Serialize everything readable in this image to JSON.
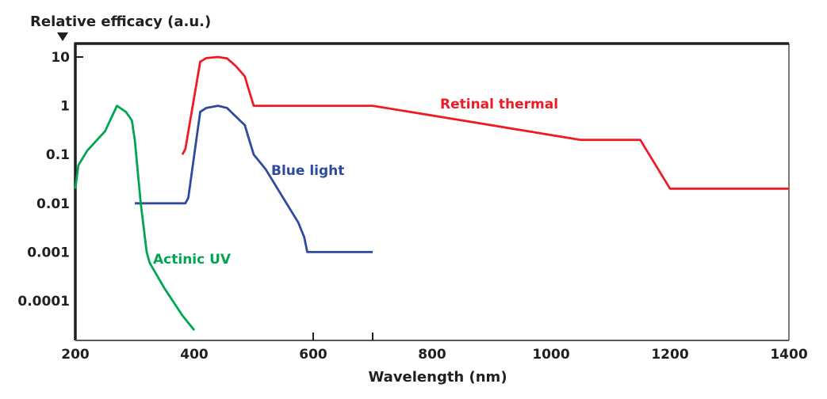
{
  "chart_data": {
    "type": "line",
    "title": "",
    "ylabel": "Relative efficacy (a.u.)",
    "xlabel": "Wavelength (nm)",
    "xlim": [
      200,
      1400
    ],
    "ylim": [
      2e-05,
      20
    ],
    "yscale": "log",
    "grid": false,
    "x_ticks": [
      200,
      400,
      600,
      800,
      1000,
      1200,
      1400
    ],
    "x_tick_labels": [
      "200",
      "400",
      "600",
      "800",
      "1000",
      "1200",
      "1400"
    ],
    "x_tick_marks": [
      600,
      700
    ],
    "y_ticks": [
      10,
      1,
      0.1,
      0.01,
      0.001,
      0.0001
    ],
    "y_tick_labels": [
      "10",
      "1",
      "0.1",
      "0.01",
      "0.001",
      "0.0001"
    ],
    "series": [
      {
        "name": "Retinal thermal",
        "color": "#ed1c24",
        "x": [
          380,
          385,
          410,
          420,
          440,
          455,
          470,
          485,
          490,
          500,
          700,
          1050,
          1150,
          1200,
          1400
        ],
        "y": [
          0.1,
          0.13,
          8,
          9.5,
          10,
          9.4,
          6.5,
          4,
          2.5,
          1,
          1,
          0.2,
          0.2,
          0.02,
          0.02
        ]
      },
      {
        "name": "Blue light",
        "color": "#2e4a9e",
        "x": [
          300,
          385,
          390,
          410,
          420,
          440,
          455,
          470,
          485,
          490,
          500,
          520,
          540,
          560,
          575,
          585,
          590,
          700
        ],
        "y": [
          0.01,
          0.01,
          0.013,
          0.75,
          0.9,
          1,
          0.9,
          0.6,
          0.4,
          0.25,
          0.1,
          0.05,
          0.02,
          0.008,
          0.004,
          0.002,
          0.001,
          0.001
        ]
      },
      {
        "name": "Actinic UV",
        "color": "#00a651",
        "x": [
          200,
          205,
          220,
          250,
          270,
          285,
          295,
          300,
          310,
          320,
          325,
          350,
          380,
          400
        ],
        "y": [
          0.02,
          0.06,
          0.12,
          0.3,
          1,
          0.75,
          0.5,
          0.2,
          0.01,
          0.001,
          0.0006,
          0.00018,
          5e-05,
          2.5e-05
        ]
      }
    ]
  }
}
